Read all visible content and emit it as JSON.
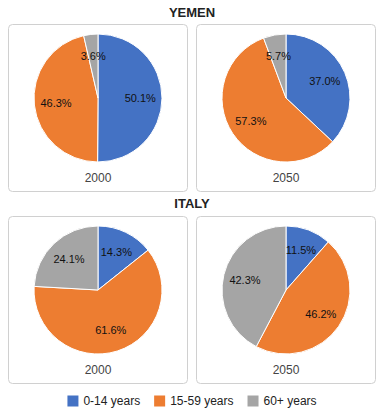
{
  "chart_data": [
    {
      "type": "pie",
      "title": "YEMEN",
      "categories": [
        "0-14 years",
        "15-59 years",
        "60+ years"
      ],
      "colors": [
        "#4472C4",
        "#ED7D31",
        "#A5A5A5"
      ],
      "legend": "bottom",
      "data_labels": true,
      "series": [
        {
          "name": "2000",
          "values": [
            50.1,
            46.3,
            3.6
          ],
          "value_labels": [
            "50.1%",
            "46.3%",
            "3.6%"
          ]
        },
        {
          "name": "2050",
          "values": [
            37.0,
            57.3,
            5.7
          ],
          "value_labels": [
            "37.0%",
            "57.3%",
            "5.7%"
          ]
        }
      ]
    },
    {
      "type": "pie",
      "title": "ITALY",
      "data_labels": true,
      "series": [
        {
          "name": "2000",
          "values": [
            14.3,
            61.6,
            24.1
          ],
          "value_labels": [
            "14.3%",
            "61.6%",
            "24.1%"
          ]
        },
        {
          "name": "2050",
          "values": [
            11.5,
            46.2,
            42.3
          ],
          "value_labels": [
            "11.5%",
            "46.2%",
            "42.3%"
          ]
        }
      ]
    }
  ]
}
